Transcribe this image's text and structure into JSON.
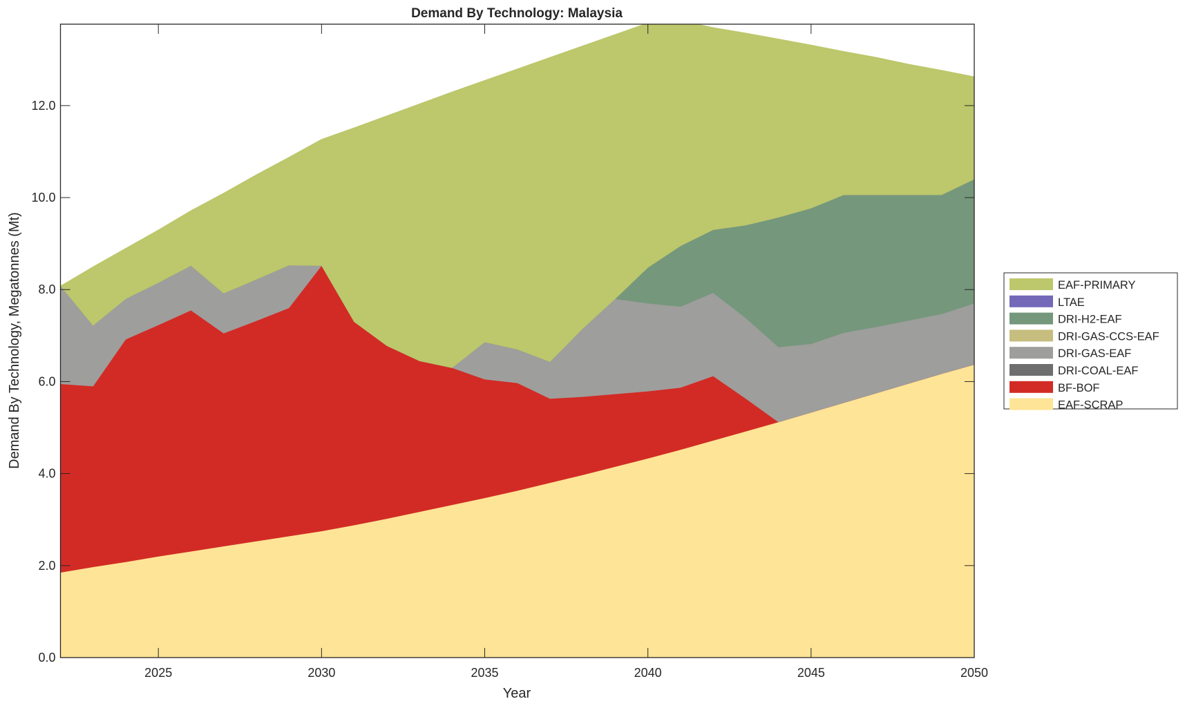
{
  "chart_data": {
    "type": "area",
    "title": "Demand By Technology: Malaysia",
    "xlabel": "Year",
    "ylabel": "Demand By Technology, Megatonnes (Mt)",
    "xlim": [
      2022,
      2050
    ],
    "ylim": [
      0,
      13.77
    ],
    "xticks": [
      2025,
      2030,
      2035,
      2040,
      2045,
      2050
    ],
    "yticks": [
      0,
      2,
      4,
      6,
      8,
      10,
      12
    ],
    "ytick_labels": [
      "0.0",
      "2.0",
      "4.0",
      "6.0",
      "8.0",
      "10.0",
      "12.0"
    ],
    "grid": false,
    "legend_position": "right",
    "x": [
      2022,
      2023,
      2024,
      2025,
      2026,
      2027,
      2028,
      2029,
      2030,
      2031,
      2032,
      2033,
      2034,
      2035,
      2036,
      2037,
      2038,
      2039,
      2040,
      2041,
      2042,
      2043,
      2044,
      2045,
      2046,
      2047,
      2048,
      2049,
      2050
    ],
    "series": [
      {
        "name": "EAF-SCRAP",
        "color": "#fee496",
        "values": [
          1.85,
          1.97,
          2.08,
          2.2,
          2.31,
          2.42,
          2.53,
          2.64,
          2.75,
          2.88,
          3.02,
          3.17,
          3.32,
          3.47,
          3.63,
          3.8,
          3.97,
          4.15,
          4.33,
          4.52,
          4.72,
          4.92,
          5.12,
          5.33,
          5.54,
          5.75,
          5.96,
          6.17,
          6.37
        ]
      },
      {
        "name": "BF-BOF",
        "color": "#d22b25",
        "values": [
          4.1,
          3.93,
          4.84,
          5.03,
          5.24,
          4.63,
          4.79,
          4.96,
          5.77,
          4.42,
          3.76,
          3.28,
          2.98,
          2.58,
          2.34,
          1.83,
          1.7,
          1.58,
          1.46,
          1.35,
          1.4,
          0.71,
          0,
          0,
          0,
          0,
          0,
          0,
          0
        ]
      },
      {
        "name": "DRI-COAL-EAF",
        "color": "#6e6e6e",
        "values": [
          0,
          0,
          0,
          0,
          0,
          0,
          0,
          0,
          0,
          0,
          0,
          0,
          0,
          0,
          0,
          0,
          0,
          0,
          0,
          0,
          0,
          0,
          0,
          0,
          0,
          0,
          0,
          0,
          0
        ]
      },
      {
        "name": "DRI-GAS-EAF",
        "color": "#9e9e9c",
        "values": [
          2.13,
          1.32,
          0.88,
          0.92,
          0.97,
          0.87,
          0.9,
          0.93,
          0,
          0,
          0,
          0,
          0,
          0.81,
          0.73,
          0.8,
          1.48,
          2.07,
          1.91,
          1.76,
          1.81,
          1.75,
          1.63,
          1.49,
          1.52,
          1.44,
          1.37,
          1.3,
          1.33
        ]
      },
      {
        "name": "DRI-GAS-CCS-EAF",
        "color": "#c6bd7e",
        "values": [
          0,
          0,
          0,
          0,
          0,
          0,
          0,
          0,
          0,
          0,
          0,
          0,
          0,
          0,
          0,
          0,
          0,
          0,
          0,
          0,
          0,
          0,
          0,
          0,
          0,
          0,
          0,
          0,
          0
        ]
      },
      {
        "name": "DRI-H2-EAF",
        "color": "#75977c",
        "values": [
          0,
          0,
          0,
          0,
          0,
          0,
          0,
          0,
          0,
          0,
          0,
          0,
          0,
          0,
          0,
          0,
          0,
          0,
          0.78,
          1.32,
          1.37,
          2.02,
          2.82,
          2.95,
          3.0,
          2.87,
          2.73,
          2.59,
          2.7
        ]
      },
      {
        "name": "LTAE",
        "color": "#7369b8",
        "values": [
          0,
          0,
          0,
          0,
          0,
          0,
          0,
          0,
          0,
          0,
          0,
          0,
          0,
          0,
          0,
          0,
          0,
          0,
          0,
          0,
          0,
          0,
          0,
          0,
          0,
          0,
          0,
          0,
          0
        ]
      },
      {
        "name": "EAF-PRIMARY",
        "color": "#bdc76b",
        "values": [
          0,
          1.28,
          1.1,
          1.15,
          1.2,
          2.18,
          2.28,
          2.35,
          2.75,
          4.22,
          5.0,
          5.59,
          6.0,
          5.69,
          6.1,
          6.62,
          6.15,
          5.75,
          5.32,
          4.9,
          4.4,
          4.18,
          3.88,
          3.55,
          3.12,
          2.99,
          2.84,
          2.71,
          2.23
        ]
      }
    ],
    "legend_order": [
      "EAF-PRIMARY",
      "LTAE",
      "DRI-H2-EAF",
      "DRI-GAS-CCS-EAF",
      "DRI-GAS-EAF",
      "DRI-COAL-EAF",
      "BF-BOF",
      "EAF-SCRAP"
    ]
  }
}
